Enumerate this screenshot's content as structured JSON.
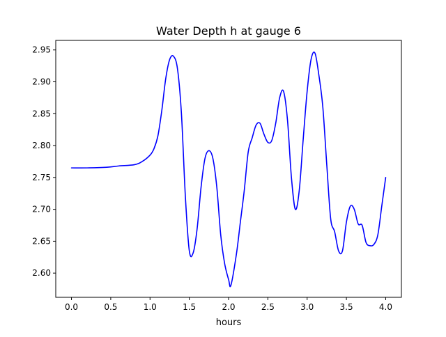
{
  "chart_data": {
    "type": "line",
    "title": "Water Depth h at gauge 6",
    "xlabel": "hours",
    "ylabel": "",
    "xlim": [
      -0.2,
      4.2
    ],
    "ylim": [
      2.562,
      2.965
    ],
    "xticks": [
      0.0,
      0.5,
      1.0,
      1.5,
      2.0,
      2.5,
      3.0,
      3.5,
      4.0
    ],
    "xtick_labels": [
      "0.0",
      "0.5",
      "1.0",
      "1.5",
      "2.0",
      "2.5",
      "3.0",
      "3.5",
      "4.0"
    ],
    "yticks": [
      2.6,
      2.65,
      2.7,
      2.75,
      2.8,
      2.85,
      2.9,
      2.95
    ],
    "ytick_labels": [
      "2.60",
      "2.65",
      "2.70",
      "2.75",
      "2.80",
      "2.85",
      "2.90",
      "2.95"
    ],
    "grid": false,
    "series": [
      {
        "color": "#0000ff",
        "x": [
          0.0,
          0.2,
          0.45,
          0.6,
          0.8,
          0.9,
          1.0,
          1.05,
          1.1,
          1.15,
          1.2,
          1.25,
          1.3,
          1.35,
          1.4,
          1.45,
          1.5,
          1.55,
          1.6,
          1.65,
          1.7,
          1.75,
          1.8,
          1.85,
          1.9,
          1.95,
          2.0,
          2.03,
          2.1,
          2.15,
          2.2,
          2.25,
          2.3,
          2.35,
          2.4,
          2.45,
          2.5,
          2.55,
          2.6,
          2.65,
          2.7,
          2.75,
          2.8,
          2.85,
          2.9,
          2.95,
          3.0,
          3.05,
          3.1,
          3.15,
          3.2,
          3.25,
          3.3,
          3.35,
          3.4,
          3.45,
          3.5,
          3.55,
          3.6,
          3.65,
          3.7,
          3.75,
          3.8,
          3.85,
          3.9,
          3.95,
          4.0
        ],
        "y": [
          2.765,
          2.765,
          2.766,
          2.768,
          2.77,
          2.775,
          2.785,
          2.795,
          2.815,
          2.855,
          2.905,
          2.935,
          2.94,
          2.92,
          2.85,
          2.72,
          2.635,
          2.632,
          2.67,
          2.735,
          2.78,
          2.792,
          2.78,
          2.735,
          2.66,
          2.615,
          2.59,
          2.581,
          2.63,
          2.68,
          2.73,
          2.79,
          2.812,
          2.832,
          2.835,
          2.818,
          2.805,
          2.808,
          2.835,
          2.875,
          2.885,
          2.84,
          2.75,
          2.7,
          2.73,
          2.81,
          2.885,
          2.935,
          2.945,
          2.91,
          2.86,
          2.77,
          2.685,
          2.665,
          2.635,
          2.635,
          2.68,
          2.705,
          2.7,
          2.677,
          2.675,
          2.648,
          2.643,
          2.645,
          2.66,
          2.705,
          2.75
        ]
      }
    ]
  }
}
